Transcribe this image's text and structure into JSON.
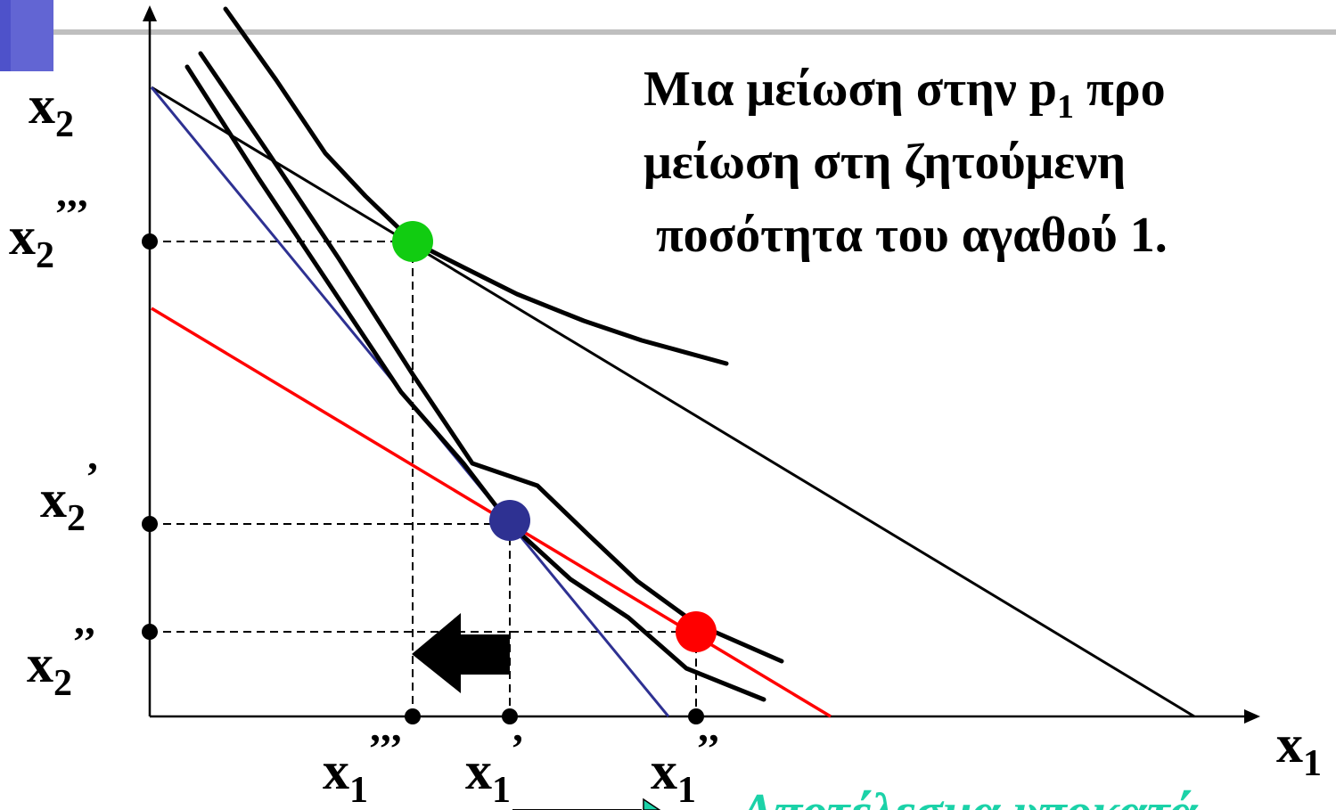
{
  "slide": {
    "accent_color": "#3b3fc4",
    "title_line1_pre": "Μια μείωση στην p",
    "title_line1_sub": "1",
    "title_line1_post": " προ",
    "title_line2": "μείωση στη ζητούμενη",
    "title_line3": "ποσότητα του αγαθού 1.",
    "caption_partial": "Αποτέλεσμα υποκατά"
  },
  "axes": {
    "x_label": "x",
    "x_sub": "1",
    "y_label": "x",
    "y_sub": "2"
  },
  "ticks": {
    "y_triple": {
      "base": "x",
      "sub": "2",
      "prime": "’’’"
    },
    "y_single": {
      "base": "x",
      "sub": "2",
      "prime": "’"
    },
    "y_double": {
      "base": "x",
      "sub": "2",
      "prime": "’’"
    },
    "x_triple": {
      "base": "x",
      "sub": "1",
      "prime": "’’’"
    },
    "x_single": {
      "base": "x",
      "sub": "1",
      "prime": "’"
    },
    "x_double": {
      "base": "x",
      "sub": "1",
      "prime": "’’"
    }
  },
  "colors": {
    "original_budget_line": "#2e3192",
    "compensated_budget_line": "#ff0000",
    "final_budget_line": "#000000",
    "point_final": "#11cc11",
    "point_original": "#2e3192",
    "point_compensated": "#ff0000",
    "caption": "#1bd2a8"
  }
}
